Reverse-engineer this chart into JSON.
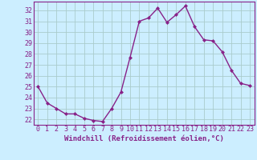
{
  "x": [
    0,
    1,
    2,
    3,
    4,
    5,
    6,
    7,
    8,
    9,
    10,
    11,
    12,
    13,
    14,
    15,
    16,
    17,
    18,
    19,
    20,
    21,
    22,
    23
  ],
  "y": [
    25.0,
    23.5,
    23.0,
    22.5,
    22.5,
    22.1,
    21.9,
    21.8,
    23.0,
    24.5,
    27.7,
    31.0,
    31.3,
    32.2,
    30.9,
    31.6,
    32.4,
    30.5,
    29.3,
    29.2,
    28.2,
    26.5,
    25.3,
    25.1
  ],
  "line_color": "#882288",
  "marker": "D",
  "markersize": 2.0,
  "linewidth": 1.0,
  "background_color": "#cceeff",
  "grid_color": "#aacccc",
  "xlabel": "Windchill (Refroidissement éolien,°C)",
  "xlabel_fontsize": 6.5,
  "ylabel_ticks": [
    22,
    23,
    24,
    25,
    26,
    27,
    28,
    29,
    30,
    31,
    32
  ],
  "xtick_labels": [
    "0",
    "1",
    "2",
    "3",
    "4",
    "5",
    "6",
    "7",
    "8",
    "9",
    "10",
    "11",
    "12",
    "13",
    "14",
    "15",
    "16",
    "17",
    "18",
    "19",
    "20",
    "21",
    "22",
    "23"
  ],
  "ylim": [
    21.5,
    32.8
  ],
  "xlim": [
    -0.5,
    23.5
  ],
  "tick_fontsize": 6.0
}
